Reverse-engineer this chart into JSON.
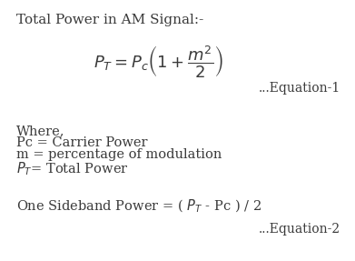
{
  "bg_color": "#ffffff",
  "text_color": "#3a3a3a",
  "title": "Total Power in AM Signal:-",
  "equation1": "$P_T = P_c\\left(1 + \\dfrac{m^2}{2}\\right)$",
  "equation1_label": "...Equation-1",
  "where_line0": "Where,",
  "where_line1": "Pc = Carrier Power",
  "where_line2": "m = percentage of modulation",
  "where_line3": "$P_T$= Total Power",
  "sideband_line": "One Sideband Power = ( $P_T$ - Pc ) / 2",
  "equation2_label": "...Equation-2",
  "title_fontsize": 11,
  "eq_fontsize": 13,
  "label_fontsize": 10,
  "where_fontsize": 10.5,
  "side_fontsize": 10.5
}
